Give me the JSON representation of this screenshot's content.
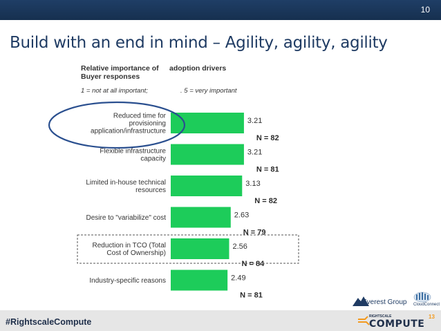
{
  "slide": {
    "number": "10",
    "title": "Build with an end in mind – Agility, agility, agility",
    "hashtag": "#RightscaleCompute"
  },
  "chart_header": {
    "line1_a": "Relative importance of",
    "line1_b": "adoption drivers",
    "line2": "Buyer responses",
    "scale_low": "1 = not at all important;",
    "scale_high": ". 5 = very important"
  },
  "colors": {
    "bar": "#1dcc5a",
    "circle": "#2a4f8f",
    "header_bar": "#1f3e66",
    "title": "#1f3b63",
    "footer": "#e6e6e6"
  },
  "chart_data": {
    "type": "bar",
    "orientation": "horizontal",
    "categories": [
      "Reduced time for provisioning application/infrastructure",
      "Flexible infrastructure capacity",
      "Limited in-house technical resources",
      "Desire to \"variabilize\" cost",
      "Reduction in TCO (Total Cost of Ownership)",
      "Industry-specific reasons"
    ],
    "category_lines": [
      [
        "Reduced time for",
        "provisioning",
        "application/infrastructure"
      ],
      [
        "Flexible infrastructure",
        "capacity"
      ],
      [
        "Limited in-house technical",
        "resources"
      ],
      [
        "Desire to \"variabilize\" cost"
      ],
      [
        "Reduction in TCO (Total",
        "Cost of Ownership)"
      ],
      [
        "Industry-specific reasons"
      ]
    ],
    "values": [
      3.21,
      3.21,
      3.13,
      2.63,
      2.56,
      2.49
    ],
    "value_labels": [
      "3.21",
      "3.21",
      "3.13",
      "2.63",
      "2.56",
      "2.49"
    ],
    "n_labels": [
      "N = 82",
      "N = 81",
      "N = 82",
      "N = 79",
      "N = 84",
      "N = 81"
    ],
    "highlight_circle_index": 0,
    "highlight_box_index": 4,
    "xlim": [
      0,
      5
    ],
    "grid": false,
    "legend": "none"
  },
  "logos": {
    "everest": "Everest Group",
    "cloudconnect": "CloudConnect",
    "rightscale_small": "RIGHTSCALE",
    "compute": "COMPUTE",
    "compute_num": "13"
  }
}
